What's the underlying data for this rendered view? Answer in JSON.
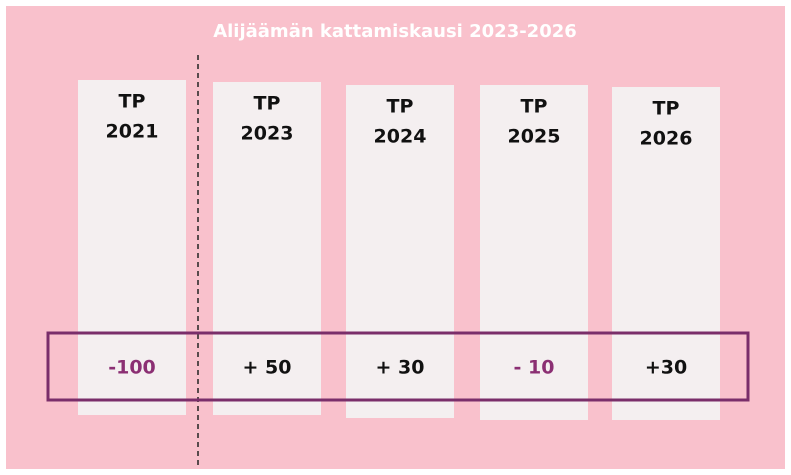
{
  "title": "Alijäämän kattamiskausi 2023-2026",
  "columns": [
    {
      "label": [
        "TP",
        "2021"
      ],
      "value": "-100",
      "value_color": "#8b2f73"
    },
    {
      "label": [
        "TP",
        "2023"
      ],
      "value": "+ 50",
      "value_color": "#111111"
    },
    {
      "label": [
        "TP",
        "2024"
      ],
      "value": "+ 30",
      "value_color": "#111111"
    },
    {
      "label": [
        "TP",
        "2025"
      ],
      "value": "- 10",
      "value_color": "#8b2f73"
    },
    {
      "label": [
        "TP",
        "2026"
      ],
      "value": "+30",
      "value_color": "#111111"
    }
  ]
}
